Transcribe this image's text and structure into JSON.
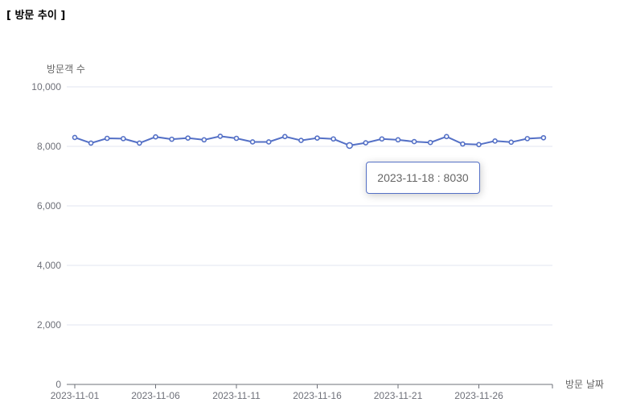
{
  "section": {
    "title": "[ 방문 추이 ]"
  },
  "chart_data": {
    "type": "line",
    "ylabel": "방문객 수",
    "xlabel": "방문 날짜",
    "ylim": [
      0,
      10000
    ],
    "yticks": [
      0,
      2000,
      4000,
      6000,
      8000,
      10000
    ],
    "ytick_labels": [
      "0",
      "2,000",
      "4,000",
      "6,000",
      "8,000",
      "10,000"
    ],
    "xtick_labels": [
      "2023-11-01",
      "2023-11-06",
      "2023-11-11",
      "2023-11-16",
      "2023-11-21",
      "2023-11-26"
    ],
    "x": [
      "2023-11-01",
      "2023-11-02",
      "2023-11-03",
      "2023-11-04",
      "2023-11-05",
      "2023-11-06",
      "2023-11-07",
      "2023-11-08",
      "2023-11-09",
      "2023-11-10",
      "2023-11-11",
      "2023-11-12",
      "2023-11-13",
      "2023-11-14",
      "2023-11-15",
      "2023-11-16",
      "2023-11-17",
      "2023-11-18",
      "2023-11-19",
      "2023-11-20",
      "2023-11-21",
      "2023-11-22",
      "2023-11-23",
      "2023-11-24",
      "2023-11-25",
      "2023-11-26",
      "2023-11-27",
      "2023-11-28",
      "2023-11-29",
      "2023-11-30"
    ],
    "series": [
      {
        "values": [
          8300,
          8110,
          8270,
          8260,
          8110,
          8320,
          8240,
          8280,
          8220,
          8340,
          8270,
          8150,
          8150,
          8330,
          8200,
          8280,
          8250,
          8030,
          8120,
          8250,
          8220,
          8160,
          8130,
          8330,
          8080,
          8060,
          8180,
          8140,
          8260,
          8290
        ],
        "color": "#5470c6"
      }
    ],
    "grid": true,
    "tooltip": {
      "text": "2023-11-18 : 8030"
    }
  }
}
